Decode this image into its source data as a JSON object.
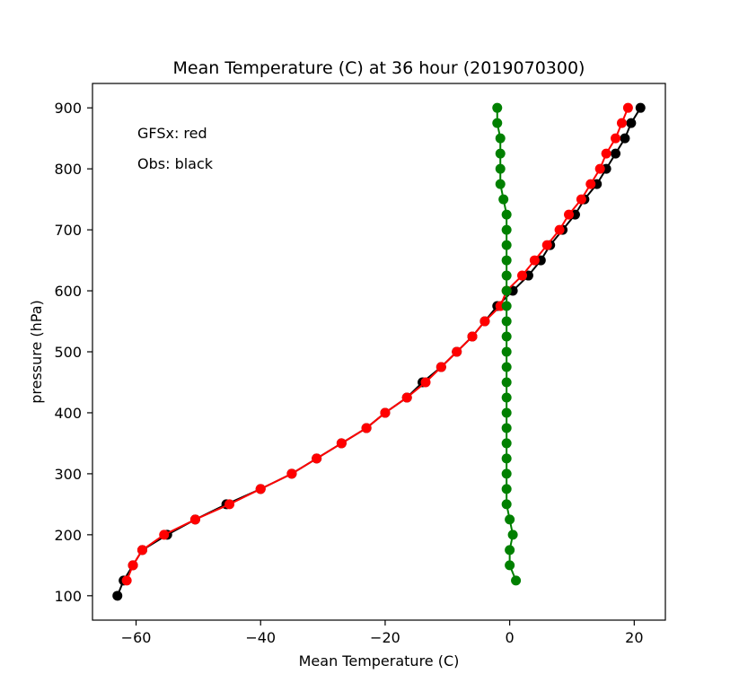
{
  "chart_data": {
    "type": "line",
    "title": "Mean Temperature (C) at 36 hour (2019070300)",
    "xlabel": "Mean Temperature (C)",
    "ylabel": "pressure (hPa)",
    "xlim": [
      -67,
      25
    ],
    "ylim": [
      60,
      940
    ],
    "xticks": [
      -60,
      -40,
      -20,
      0,
      20
    ],
    "xtick_labels": [
      "−60",
      "−40",
      "−20",
      "0",
      "20"
    ],
    "yticks": [
      100,
      200,
      300,
      400,
      500,
      600,
      700,
      800,
      900
    ],
    "ytick_labels": [
      "100",
      "200",
      "300",
      "400",
      "500",
      "600",
      "700",
      "800",
      "900"
    ],
    "grid": false,
    "annotations": [
      "GFSx: red",
      "Obs: black"
    ],
    "series": [
      {
        "color": "#000000",
        "points": [
          [
            -63.0,
            100
          ],
          [
            -62.0,
            125
          ],
          [
            -60.5,
            150
          ],
          [
            -59.0,
            175
          ],
          [
            -55.0,
            200
          ],
          [
            -50.5,
            225
          ],
          [
            -45.5,
            250
          ],
          [
            -40.0,
            275
          ],
          [
            -35.0,
            300
          ],
          [
            -31.0,
            325
          ],
          [
            -27.0,
            350
          ],
          [
            -23.0,
            375
          ],
          [
            -20.0,
            400
          ],
          [
            -16.5,
            425
          ],
          [
            -14.0,
            450
          ],
          [
            -11.0,
            475
          ],
          [
            -8.5,
            500
          ],
          [
            -6.0,
            525
          ],
          [
            -4.0,
            550
          ],
          [
            -2.0,
            575
          ],
          [
            0.5,
            600
          ],
          [
            3.0,
            625
          ],
          [
            5.0,
            650
          ],
          [
            6.5,
            675
          ],
          [
            8.5,
            700
          ],
          [
            10.5,
            725
          ],
          [
            12.0,
            750
          ],
          [
            14.0,
            775
          ],
          [
            15.5,
            800
          ],
          [
            17.0,
            825
          ],
          [
            18.5,
            850
          ],
          [
            19.5,
            875
          ],
          [
            21.0,
            900
          ]
        ]
      },
      {
        "color": "#ff0000",
        "points": [
          [
            -61.5,
            125
          ],
          [
            -60.5,
            150
          ],
          [
            -59.0,
            175
          ],
          [
            -55.5,
            200
          ],
          [
            -50.5,
            225
          ],
          [
            -45.0,
            250
          ],
          [
            -40.0,
            275
          ],
          [
            -35.0,
            300
          ],
          [
            -31.0,
            325
          ],
          [
            -27.0,
            350
          ],
          [
            -23.0,
            375
          ],
          [
            -20.0,
            400
          ],
          [
            -16.5,
            425
          ],
          [
            -13.5,
            450
          ],
          [
            -11.0,
            475
          ],
          [
            -8.5,
            500
          ],
          [
            -6.0,
            525
          ],
          [
            -4.0,
            550
          ],
          [
            -1.5,
            575
          ],
          [
            -0.5,
            600
          ],
          [
            2.0,
            625
          ],
          [
            4.0,
            650
          ],
          [
            6.0,
            675
          ],
          [
            8.0,
            700
          ],
          [
            9.5,
            725
          ],
          [
            11.5,
            750
          ],
          [
            13.0,
            775
          ],
          [
            14.5,
            800
          ],
          [
            15.5,
            825
          ],
          [
            17.0,
            850
          ],
          [
            18.0,
            875
          ],
          [
            19.0,
            900
          ]
        ]
      },
      {
        "color": "#008000",
        "points": [
          [
            1.0,
            125
          ],
          [
            0.0,
            150
          ],
          [
            0.0,
            175
          ],
          [
            0.5,
            200
          ],
          [
            0.0,
            225
          ],
          [
            -0.5,
            250
          ],
          [
            -0.5,
            275
          ],
          [
            -0.5,
            300
          ],
          [
            -0.5,
            325
          ],
          [
            -0.5,
            350
          ],
          [
            -0.5,
            375
          ],
          [
            -0.5,
            400
          ],
          [
            -0.5,
            425
          ],
          [
            -0.5,
            450
          ],
          [
            -0.5,
            475
          ],
          [
            -0.5,
            500
          ],
          [
            -0.5,
            525
          ],
          [
            -0.5,
            550
          ],
          [
            -0.5,
            575
          ],
          [
            -0.5,
            600
          ],
          [
            -0.5,
            625
          ],
          [
            -0.5,
            650
          ],
          [
            -0.5,
            675
          ],
          [
            -0.5,
            700
          ],
          [
            -0.5,
            725
          ],
          [
            -1.0,
            750
          ],
          [
            -1.5,
            775
          ],
          [
            -1.5,
            800
          ],
          [
            -1.5,
            825
          ],
          [
            -1.5,
            850
          ],
          [
            -2.0,
            875
          ],
          [
            -2.0,
            900
          ]
        ]
      }
    ]
  }
}
